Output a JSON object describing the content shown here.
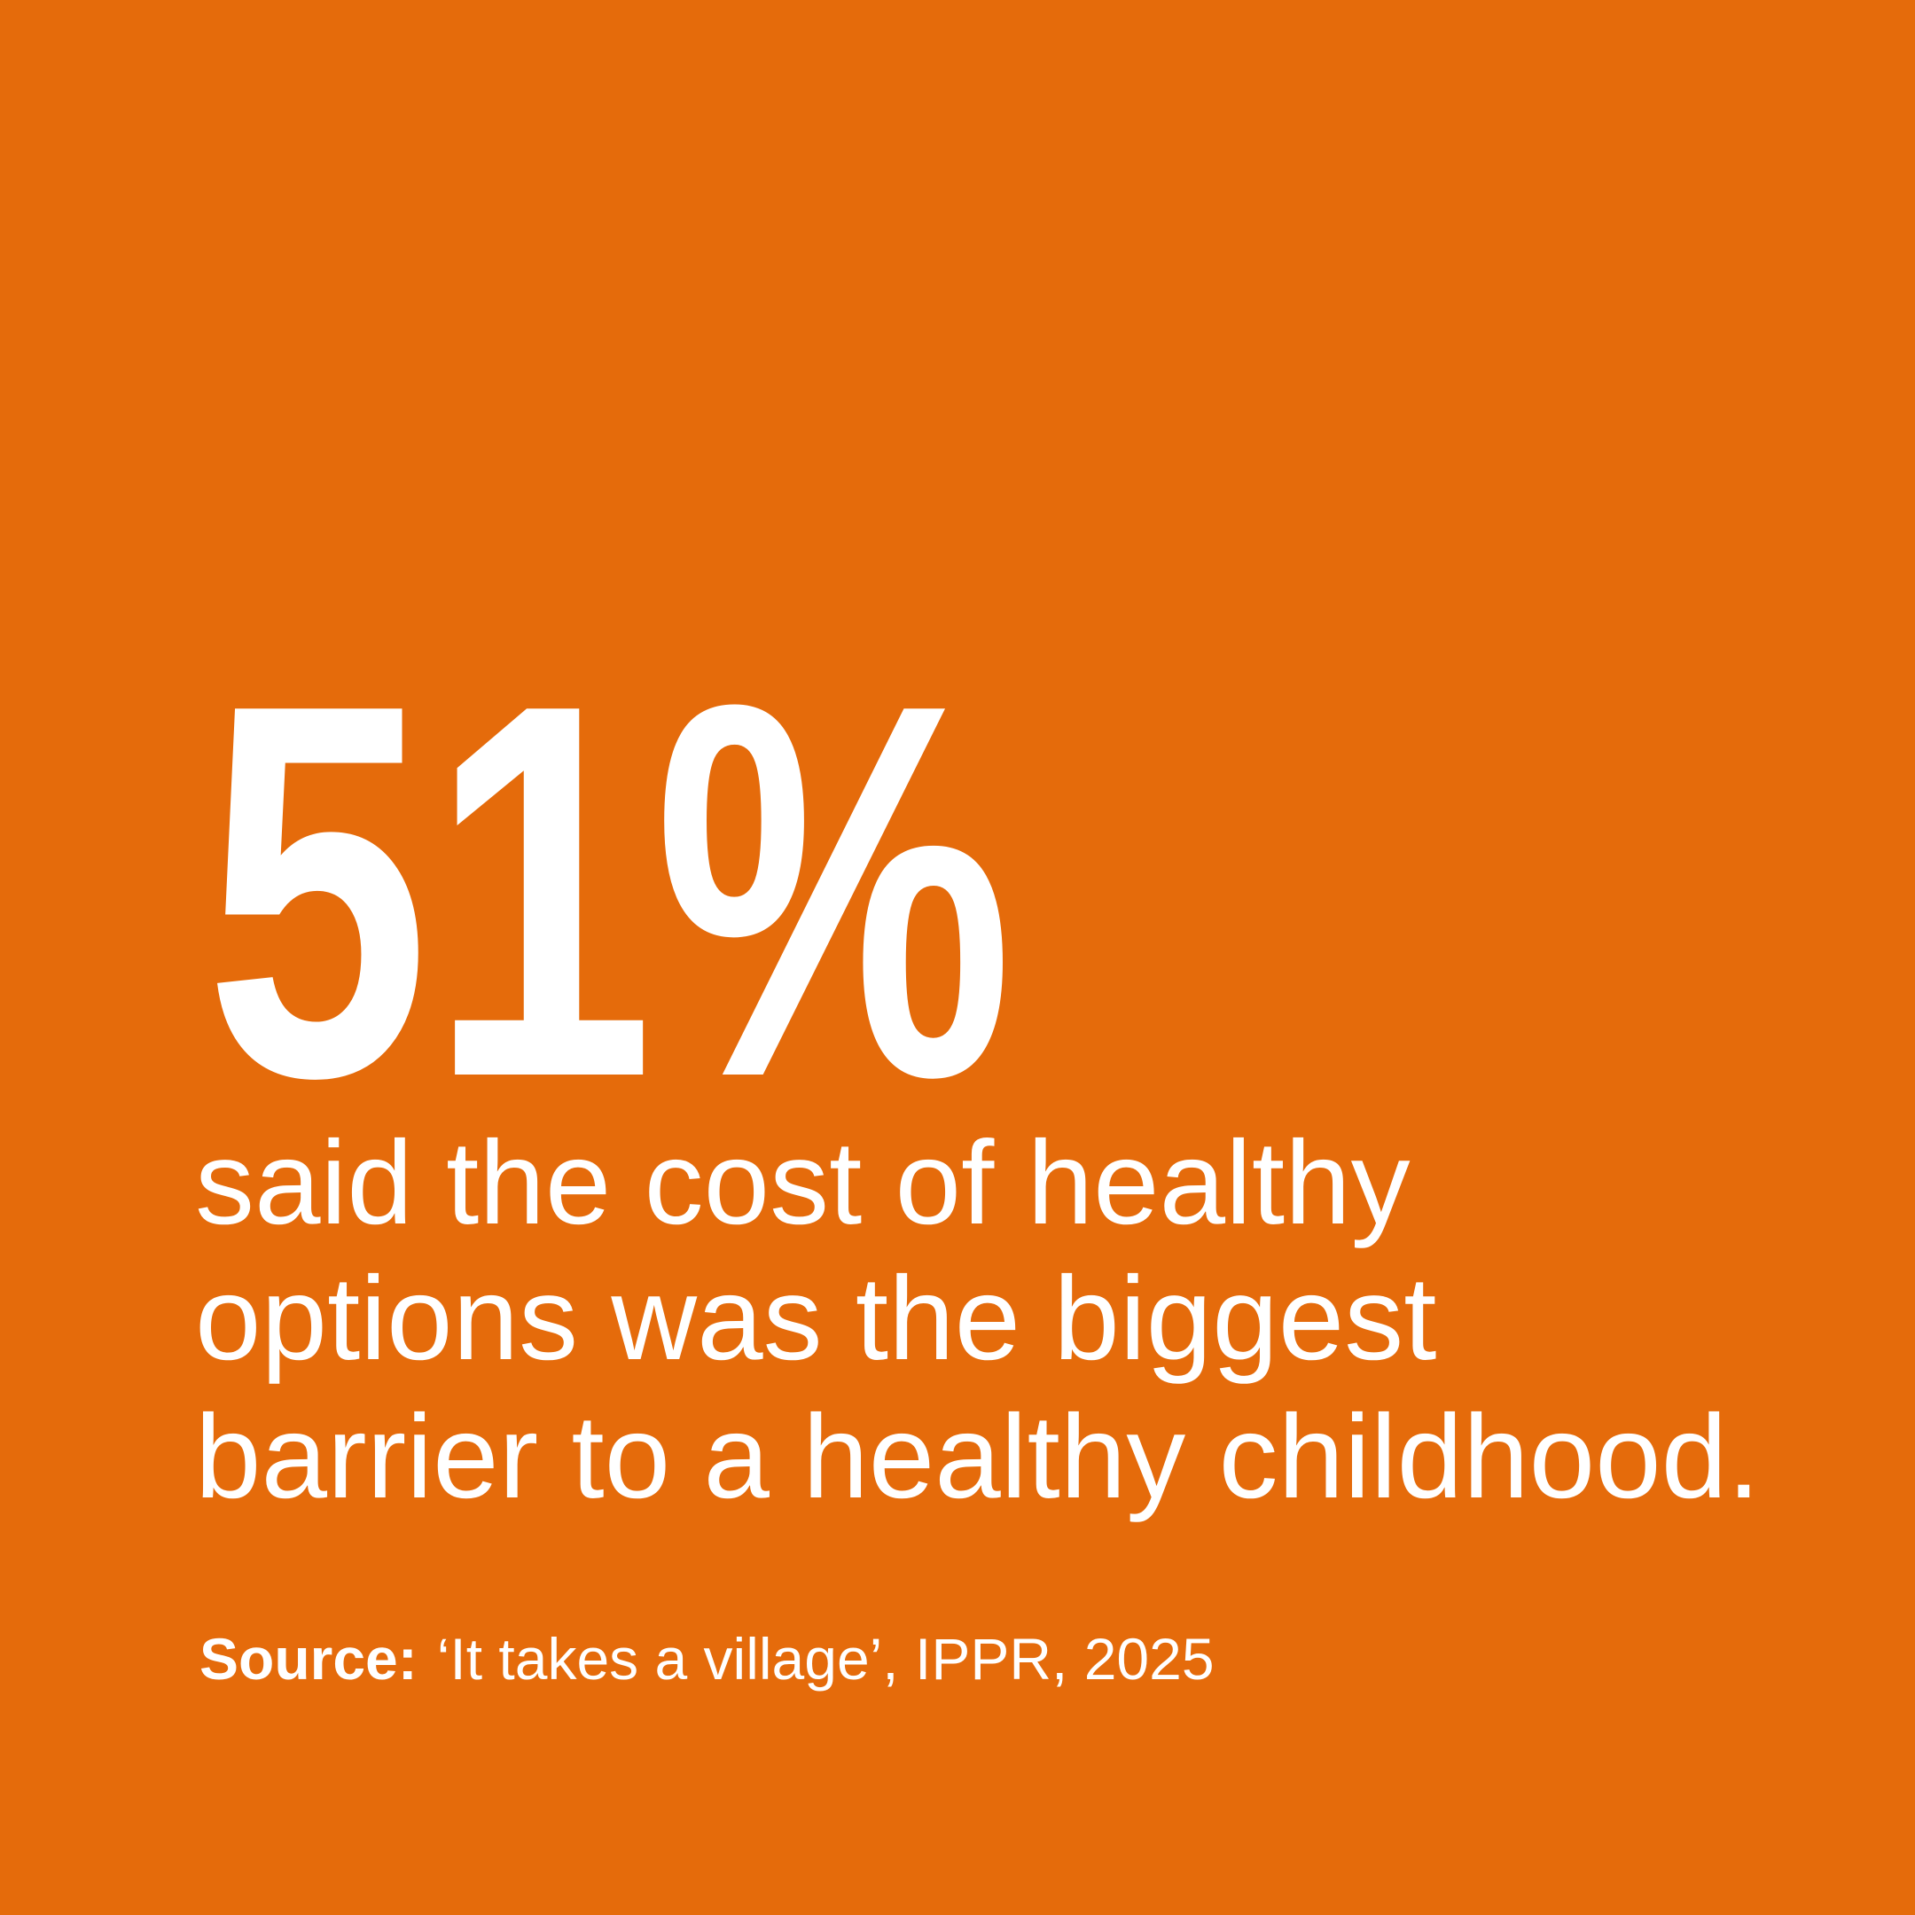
{
  "stat": "51%",
  "description": {
    "lines": [
      "said the cost of healthy",
      "options was the biggest",
      "barrier to a healthy childhood."
    ]
  },
  "source": {
    "label": "Source:",
    "text": "‘It takes a village’, IPPR, 2025"
  }
}
